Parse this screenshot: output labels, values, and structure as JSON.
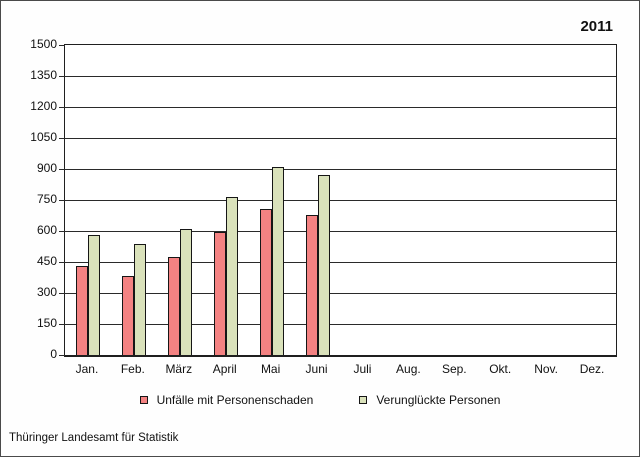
{
  "chart": {
    "year": "2011"
  },
  "footer": {
    "source": "Thüringer Landesamt für Statistik"
  },
  "colors": {
    "accidents_bar": "#f48282",
    "casualties_bar": "#dae2bb",
    "bar_border": "#161616",
    "grid": "#2a2a2a",
    "frame": "#4a4a4a"
  },
  "chart_data": {
    "type": "bar",
    "title": "2011",
    "xlabel": "",
    "ylabel": "",
    "categories": [
      "Jan.",
      "Feb.",
      "März",
      "April",
      "Mai",
      "Juni",
      "Juli",
      "Aug.",
      "Sep.",
      "Okt.",
      "Nov.",
      "Dez."
    ],
    "series": [
      {
        "name": "Unfälle mit Personenschaden",
        "color": "#f48282",
        "values": [
          430,
          380,
          475,
          595,
          705,
          675,
          null,
          null,
          null,
          null,
          null,
          null
        ]
      },
      {
        "name": "Verunglückte Personen",
        "color": "#dae2bb",
        "values": [
          580,
          535,
          610,
          765,
          910,
          870,
          null,
          null,
          null,
          null,
          null,
          null
        ]
      }
    ],
    "ylim": [
      0,
      1500
    ],
    "ytick_step": 150,
    "ytick_labels": [
      "0",
      "150",
      "300",
      "450",
      "600",
      "750",
      "900",
      "1050",
      "1200",
      "1350",
      "1500"
    ],
    "grid": true,
    "legend_position": "bottom"
  }
}
